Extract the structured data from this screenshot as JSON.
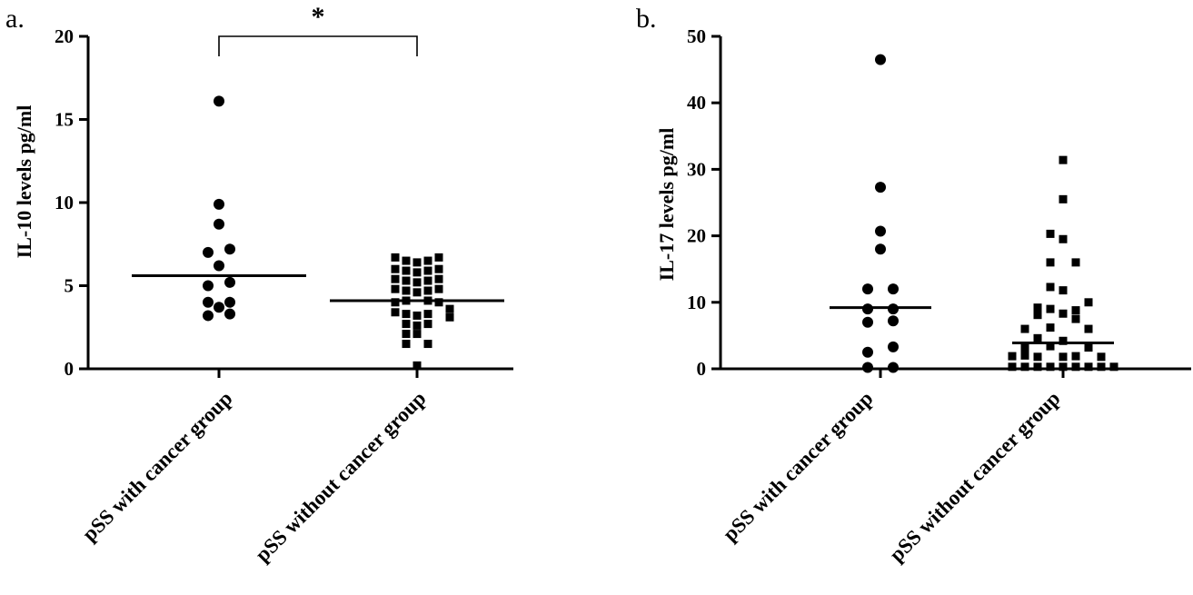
{
  "chart_data": [
    {
      "type": "scatter",
      "panel": "a.",
      "ylabel": "IL-10 levels  pg/ml",
      "ylim": [
        0,
        20
      ],
      "yticks": [
        0,
        5,
        10,
        15,
        20
      ],
      "categories": [
        "pSS with cancer group",
        "pSS without cancer group"
      ],
      "significance": "*",
      "series": [
        {
          "marker": "circle",
          "median": 5.6,
          "points": [
            [
              0,
              16.1
            ],
            [
              0,
              9.9
            ],
            [
              0,
              8.7
            ],
            [
              -1,
              7.0
            ],
            [
              1,
              7.2
            ],
            [
              0,
              6.2
            ],
            [
              -1,
              5.0
            ],
            [
              1,
              5.2
            ],
            [
              -1,
              4.0
            ],
            [
              1,
              4.0
            ],
            [
              -1,
              3.2
            ],
            [
              1,
              3.3
            ],
            [
              0,
              3.7
            ]
          ]
        },
        {
          "marker": "square",
          "median": 4.1,
          "points": [
            [
              -2,
              6.7
            ],
            [
              -1,
              6.5
            ],
            [
              0,
              6.4
            ],
            [
              1,
              6.5
            ],
            [
              2,
              6.7
            ],
            [
              -2,
              6.0
            ],
            [
              -1,
              5.9
            ],
            [
              0,
              5.8
            ],
            [
              1,
              5.9
            ],
            [
              2,
              6.0
            ],
            [
              -2,
              5.4
            ],
            [
              -1,
              5.3
            ],
            [
              0,
              5.2
            ],
            [
              1,
              5.3
            ],
            [
              2,
              5.4
            ],
            [
              -2,
              4.8
            ],
            [
              -1,
              4.7
            ],
            [
              0,
              4.6
            ],
            [
              1,
              4.7
            ],
            [
              2,
              4.8
            ],
            [
              -2,
              4.0
            ],
            [
              -1,
              4.1
            ],
            [
              1,
              4.1
            ],
            [
              2,
              4.0
            ],
            [
              3,
              3.6
            ],
            [
              -2,
              3.4
            ],
            [
              -1,
              3.3
            ],
            [
              0,
              3.2
            ],
            [
              1,
              3.3
            ],
            [
              3,
              3.1
            ],
            [
              -1,
              2.7
            ],
            [
              0,
              2.6
            ],
            [
              1,
              2.7
            ],
            [
              -1,
              2.1
            ],
            [
              0,
              2.1
            ],
            [
              -1,
              1.5
            ],
            [
              1,
              1.5
            ],
            [
              0,
              0.2
            ]
          ]
        }
      ]
    },
    {
      "type": "scatter",
      "panel": "b.",
      "ylabel": "IL-17 levels  pg/ml",
      "ylim": [
        0,
        50
      ],
      "yticks": [
        0,
        10,
        20,
        30,
        40,
        50
      ],
      "categories": [
        "pSS with cancer group",
        "pSS without cancer group"
      ],
      "series": [
        {
          "marker": "circle",
          "median": 9.2,
          "points": [
            [
              0,
              46.5
            ],
            [
              0,
              27.3
            ],
            [
              0,
              20.7
            ],
            [
              0,
              18.0
            ],
            [
              -1,
              12.0
            ],
            [
              1,
              12.0
            ],
            [
              -1,
              9.0
            ],
            [
              1,
              9.0
            ],
            [
              -1,
              7.0
            ],
            [
              1,
              7.2
            ],
            [
              -1,
              2.5
            ],
            [
              1,
              3.3
            ],
            [
              -1,
              0.2
            ],
            [
              1,
              0.2
            ]
          ]
        },
        {
          "marker": "square",
          "median": 3.9,
          "points": [
            [
              0,
              31.4
            ],
            [
              0,
              25.5
            ],
            [
              -1,
              20.3
            ],
            [
              0,
              19.5
            ],
            [
              -1,
              16.0
            ],
            [
              1,
              16.0
            ],
            [
              -1,
              12.3
            ],
            [
              0,
              11.8
            ],
            [
              2,
              10.0
            ],
            [
              -2,
              9.2
            ],
            [
              -1,
              9.0
            ],
            [
              1,
              8.8
            ],
            [
              -2,
              8.1
            ],
            [
              0,
              8.3
            ],
            [
              1,
              7.5
            ],
            [
              -3,
              6.0
            ],
            [
              -1,
              6.2
            ],
            [
              2,
              6.0
            ],
            [
              -2,
              4.6
            ],
            [
              0,
              4.2
            ],
            [
              -3,
              3.2
            ],
            [
              -1,
              3.4
            ],
            [
              2,
              3.2
            ],
            [
              -4,
              1.9
            ],
            [
              -3,
              2.0
            ],
            [
              -2,
              1.8
            ],
            [
              0,
              1.8
            ],
            [
              1,
              1.9
            ],
            [
              3,
              1.8
            ],
            [
              -4,
              0.3
            ],
            [
              -3,
              0.3
            ],
            [
              -2,
              0.3
            ],
            [
              -1,
              0.3
            ],
            [
              0,
              0.3
            ],
            [
              1,
              0.3
            ],
            [
              2,
              0.3
            ],
            [
              3,
              0.3
            ],
            [
              4,
              0.3
            ]
          ]
        }
      ]
    }
  ]
}
